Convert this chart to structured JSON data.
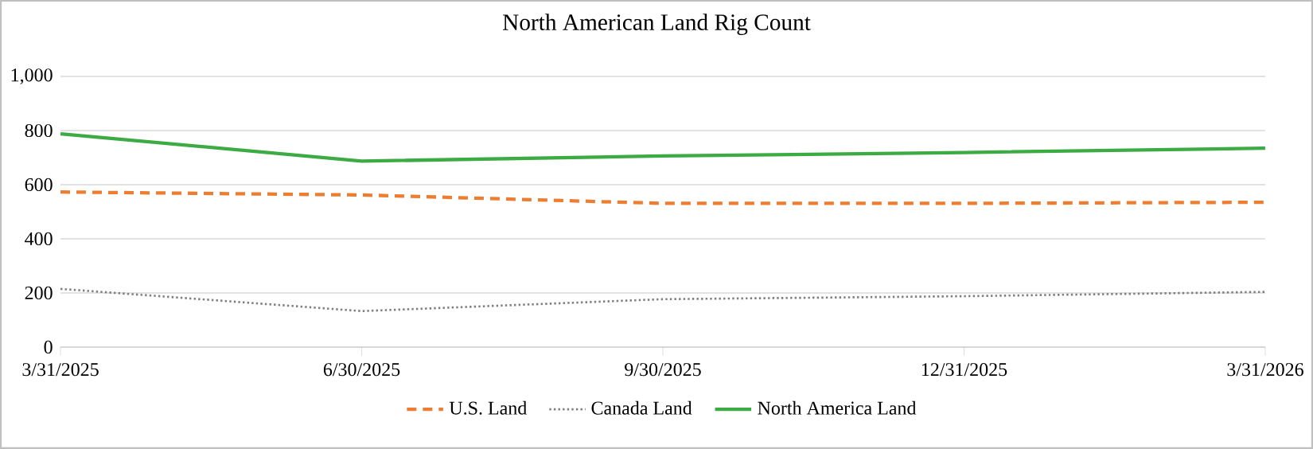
{
  "chart_data": {
    "type": "line",
    "title": "North American Land Rig Count",
    "categories": [
      "3/31/2025",
      "6/30/2025",
      "9/30/2025",
      "12/31/2025",
      "3/31/2026"
    ],
    "series": [
      {
        "name": "U.S. Land",
        "color": "#ed7d31",
        "line_style": "dashed",
        "values": [
          573,
          562,
          531,
          531,
          535
        ]
      },
      {
        "name": "Canada Land",
        "color": "#7f7f7f",
        "line_style": "dotted",
        "values": [
          215,
          133,
          177,
          188,
          204
        ]
      },
      {
        "name": "North America Land",
        "color": "#3cab43",
        "line_style": "solid",
        "values": [
          788,
          687,
          706,
          719,
          735
        ]
      }
    ],
    "ylim": [
      0,
      1000
    ],
    "yticks": [
      0,
      200,
      400,
      600,
      800,
      {
        "value": 1000,
        "label": "1,000"
      }
    ],
    "grid": "y",
    "legend": "bottom"
  }
}
